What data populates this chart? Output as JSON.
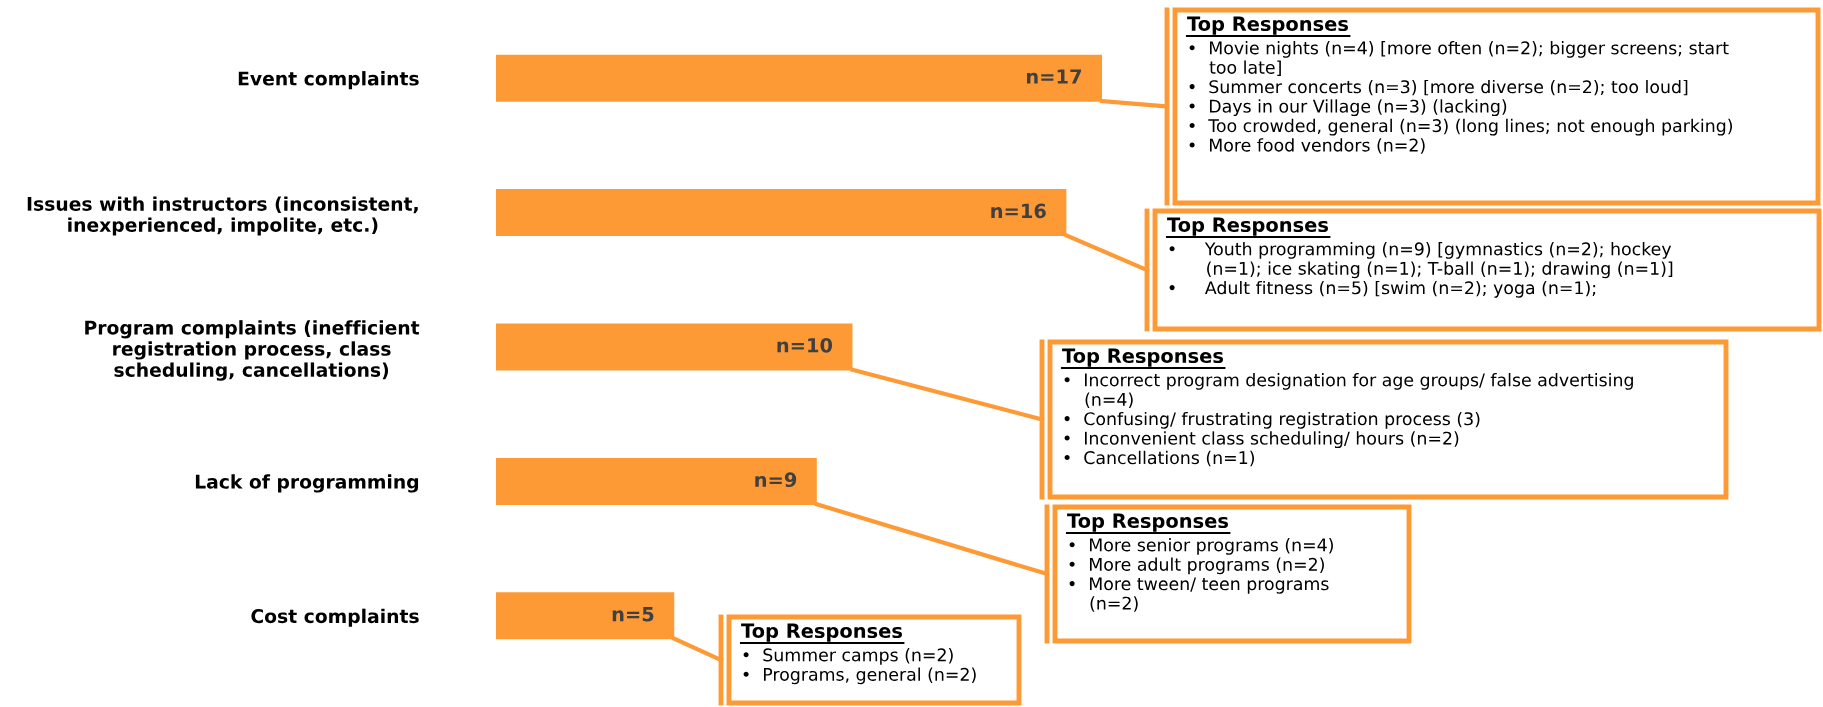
{
  "chart_data": {
    "type": "bar",
    "orientation": "horizontal",
    "color": "#fd9a35",
    "categories": [
      "Event complaints",
      "Issues with instructors (inconsistent,\ninexperienced, impolite, etc.)",
      "Program complaints (inefficient\nregistration process, class\nscheduling, cancellations)",
      "Lack of programming",
      "Cost complaints"
    ],
    "values": [
      17,
      16,
      10,
      9,
      5
    ],
    "value_labels": [
      "n=17",
      "n=16",
      "n=10",
      "n=9",
      "n=5"
    ],
    "annotations": [
      "Top Responses\n•  Movie nights (n=4) [more often (n=2); bigger screens; start\n    too late]\n•  Summer concerts (n=3) [more diverse (n=2); too loud]\n•  Days in our Village (n=3) (lacking)\n•  Too crowded, general (n=3) (long lines; not enough parking)\n•  More food vendors (n=2)",
      "Top Responses\n•     Youth programming (n=9) [gymnastics (n=2); hockey\n       (n=1); ice skating (n=1); T-ball (n=1); drawing (n=1)]\n•     Adult fitness (n=5) [swim (n=2); yoga (n=1);",
      "Top Responses\n•  Incorrect program designation for age groups/ false advertising\n    (n=4)\n•  Confusing/ frustrating registration process (3)\n•  Inconvenient class scheduling/ hours (n=2)\n•  Cancellations (n=1)",
      "Top Responses\n•  More senior programs (n=4)\n•  More adult programs (n=2)\n•  More tween/ teen programs\n    (n=2)",
      "Top Responses\n•  Summer camps (n=2)\n•  Programs, general (n=2)"
    ]
  }
}
